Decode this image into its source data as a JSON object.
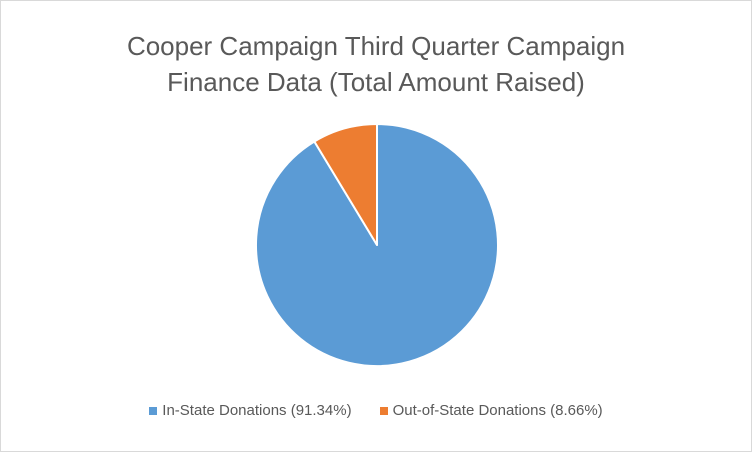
{
  "chart_data": {
    "type": "pie",
    "title": "Cooper Campaign Third Quarter Campaign\nFinance Data  (Total Amount Raised)",
    "slices": [
      {
        "label": "In-State Donations (91.34%)",
        "value": 91.34,
        "color": "#5b9bd5"
      },
      {
        "label": "Out-of-State Donations (8.66%)",
        "value": 8.66,
        "color": "#ed7d31"
      }
    ],
    "legend_position": "bottom",
    "start_angle_deg": 0,
    "direction": "clockwise",
    "slice_border_color": "#ffffff"
  }
}
